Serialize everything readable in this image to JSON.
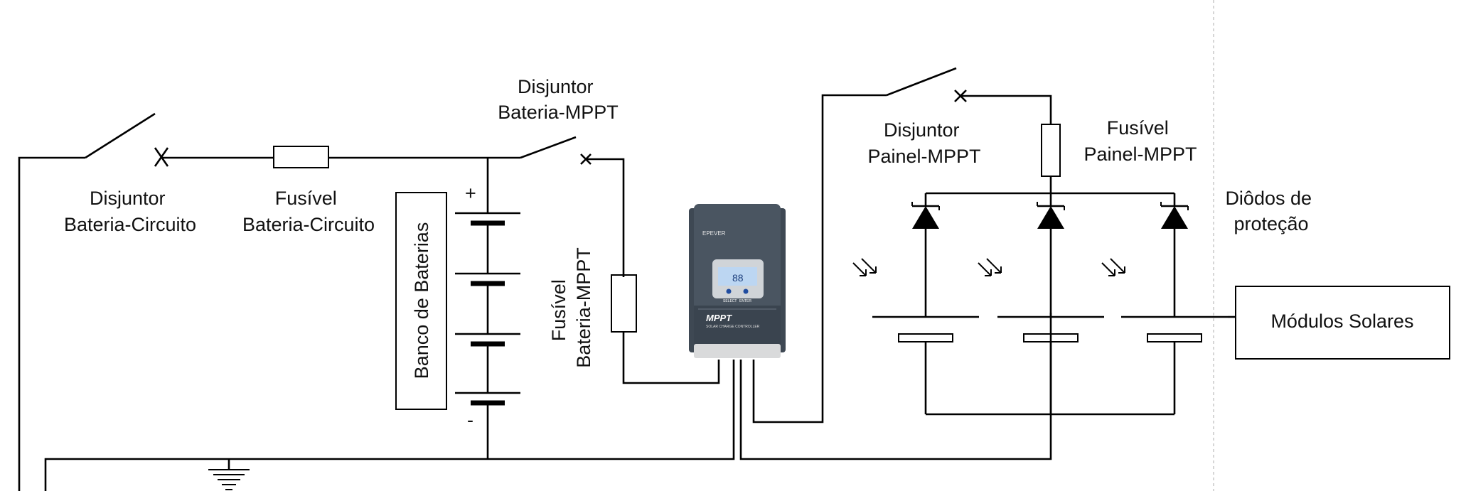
{
  "labels": {
    "breaker_battery_circuit": [
      "Disjuntor",
      "Bateria-Circuito"
    ],
    "fuse_battery_circuit": [
      "Fusível",
      "Bateria-Circuito"
    ],
    "battery_bank": "Banco de Baterias",
    "battery_plus": "+",
    "battery_minus": "-",
    "breaker_battery_mppt": [
      "Disjuntor",
      "Bateria-MPPT"
    ],
    "fuse_battery_mppt": [
      "Fusível",
      "Bateria-MPPT"
    ],
    "breaker_panel_mppt": [
      "Disjuntor",
      "Painel-MPPT"
    ],
    "fuse_panel_mppt": [
      "Fusível",
      "Painel-MPPT"
    ],
    "protection_diodes": [
      "Diôdos de",
      "proteção"
    ],
    "solar_modules": "Módulos Solares"
  },
  "controller": {
    "brand": "EPEVER",
    "model": "MPPT",
    "subtitle": "SOLAR CHARGE CONTROLLER",
    "lcd_value": "88",
    "button_left": "SELECT",
    "button_right": "ENTER"
  },
  "colors": {
    "wire": "#000000",
    "controller_body": "#46505c",
    "controller_frame": "#d9dadb",
    "lcd": "#bcd6f2"
  }
}
